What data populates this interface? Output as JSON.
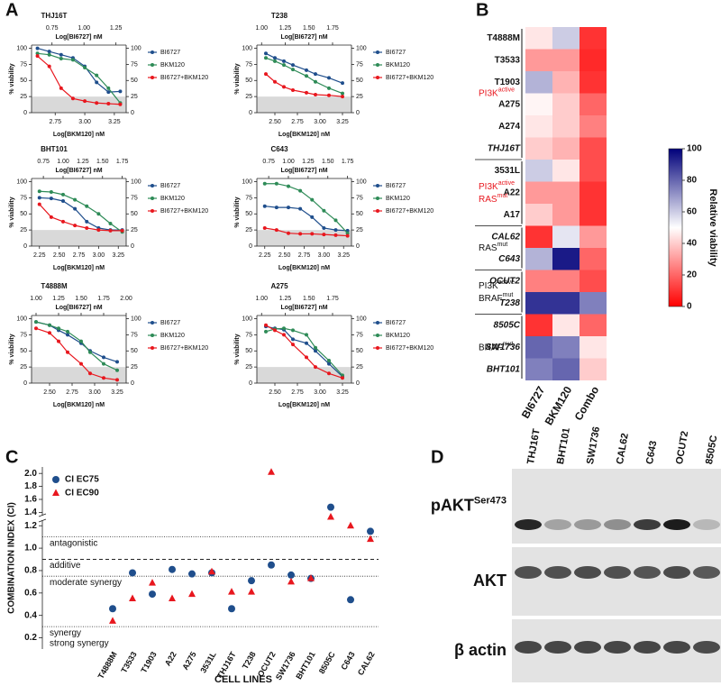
{
  "panels": [
    "A",
    "B",
    "C",
    "D"
  ],
  "chart_data": [
    {
      "type": "line",
      "title": "THJ16T",
      "x_label": "Log[BKM120] nM",
      "x2_label": "Log[BI6727] nM",
      "y_label": "% viability",
      "x": [
        2.6,
        2.7,
        2.8,
        2.9,
        3.0,
        3.1,
        3.2,
        3.3
      ],
      "xlim": [
        2.55,
        3.35
      ],
      "xticks": [
        2.75,
        {
          "value": 3,
          "label": "3.00"
        },
        3.25
      ],
      "x2lim": [
        0.59,
        1.33
      ],
      "x2ticks": [
        0.75,
        {
          "value": 1,
          "label": "1.00"
        },
        1.25
      ],
      "ylim": [
        0,
        105
      ],
      "yticks": [
        0,
        25,
        50,
        75,
        100
      ],
      "y2lim": [
        0,
        105
      ],
      "y2ticks": [
        0,
        25,
        50,
        75,
        100
      ],
      "shaded_band": [
        0,
        25
      ],
      "series": [
        {
          "name": "BI6727",
          "color": "#1f4e8c",
          "values": [
            100,
            95,
            90,
            85,
            72,
            47,
            32,
            33
          ]
        },
        {
          "name": "BKM120",
          "color": "#2e8b57",
          "values": [
            92,
            90,
            84,
            82,
            70,
            58,
            38,
            15
          ]
        },
        {
          "name": "BI6727+BKM120",
          "color": "#e8171e",
          "values": [
            88,
            72,
            38,
            22,
            18,
            15,
            14,
            13
          ]
        }
      ]
    },
    {
      "type": "line",
      "title": "T238",
      "x_label": "Log[BKM120] nM",
      "x2_label": "Log[BI6727] nM",
      "y_label": "% viability",
      "x": [
        2.4,
        2.5,
        2.6,
        2.7,
        2.85,
        2.95,
        3.1,
        3.25
      ],
      "xlim": [
        2.3,
        3.35
      ],
      "xticks": [
        {
          "value": 2.5,
          "label": "2.50"
        },
        2.75,
        {
          "value": 3,
          "label": "3.00"
        },
        3.25
      ],
      "x2lim": [
        0.95,
        1.95
      ],
      "x2ticks": [
        {
          "value": 1,
          "label": "1.00"
        },
        1.25,
        {
          "value": 1.5,
          "label": "1.50"
        },
        1.75
      ],
      "ylim": [
        0,
        105
      ],
      "yticks": [
        0,
        25,
        50,
        75,
        100
      ],
      "y2lim": [
        0,
        105
      ],
      "y2ticks": [
        0,
        25,
        50,
        75,
        100
      ],
      "shaded_band": [
        0,
        25
      ],
      "series": [
        {
          "name": "BI6727",
          "color": "#1f4e8c",
          "values": [
            92,
            85,
            80,
            74,
            66,
            60,
            54,
            46
          ]
        },
        {
          "name": "BKM120",
          "color": "#2e8b57",
          "values": [
            85,
            80,
            74,
            67,
            57,
            48,
            38,
            30
          ]
        },
        {
          "name": "BI6727+BKM120",
          "color": "#e8171e",
          "values": [
            60,
            48,
            40,
            35,
            31,
            28,
            27,
            25
          ]
        }
      ]
    },
    {
      "type": "line",
      "title": "BHT101",
      "x_label": "Log[BKM120] nM",
      "x2_label": "Log[BI6727] nM",
      "y_label": "% viability",
      "x": [
        2.25,
        2.4,
        2.55,
        2.7,
        2.85,
        3.0,
        3.15,
        3.3
      ],
      "xlim": [
        2.15,
        3.35
      ],
      "xticks": [
        2.25,
        {
          "value": 2.5,
          "label": "2.50"
        },
        2.75,
        {
          "value": 3,
          "label": "3.00"
        },
        3.25
      ],
      "x2lim": [
        0.6,
        1.8
      ],
      "x2ticks": [
        0.75,
        {
          "value": 1,
          "label": "1.00"
        },
        1.25,
        {
          "value": 1.5,
          "label": "1.50"
        },
        1.75
      ],
      "ylim": [
        0,
        105
      ],
      "yticks": [
        0,
        25,
        50,
        75,
        100
      ],
      "y2lim": [
        0,
        105
      ],
      "y2ticks": [
        0,
        25,
        50,
        75,
        100
      ],
      "shaded_band": [
        0,
        25
      ],
      "series": [
        {
          "name": "BI6727",
          "color": "#1f4e8c",
          "values": [
            75,
            74,
            70,
            58,
            38,
            28,
            25,
            25
          ]
        },
        {
          "name": "BKM120",
          "color": "#2e8b57",
          "values": [
            85,
            84,
            80,
            72,
            62,
            50,
            35,
            22
          ]
        },
        {
          "name": "BI6727+BKM120",
          "color": "#e8171e",
          "values": [
            65,
            45,
            38,
            32,
            28,
            25,
            24,
            24
          ]
        }
      ]
    },
    {
      "type": "line",
      "title": "C643",
      "x_label": "Log[BKM120] nM",
      "x2_label": "Log[BI6727] nM",
      "y_label": "% viability",
      "x": [
        2.25,
        2.4,
        2.55,
        2.7,
        2.85,
        3.0,
        3.15,
        3.3
      ],
      "xlim": [
        2.15,
        3.35
      ],
      "xticks": [
        2.25,
        {
          "value": 2.5,
          "label": "2.50"
        },
        2.75,
        {
          "value": 3,
          "label": "3.00"
        },
        3.25
      ],
      "x2lim": [
        0.6,
        1.8
      ],
      "x2ticks": [
        0.75,
        {
          "value": 1,
          "label": "1.00"
        },
        1.25,
        {
          "value": 1.5,
          "label": "1.50"
        },
        1.75
      ],
      "ylim": [
        0,
        105
      ],
      "yticks": [
        0,
        25,
        50,
        75,
        100
      ],
      "y2lim": [
        0,
        105
      ],
      "y2ticks": [
        0,
        25,
        50,
        75,
        100
      ],
      "shaded_band": [
        0,
        25
      ],
      "series": [
        {
          "name": "BI6727",
          "color": "#1f4e8c",
          "values": [
            62,
            60,
            60,
            58,
            45,
            28,
            25,
            24
          ]
        },
        {
          "name": "BKM120",
          "color": "#2e8b57",
          "values": [
            97,
            97,
            93,
            86,
            72,
            55,
            40,
            20
          ]
        },
        {
          "name": "BI6727+BKM120",
          "color": "#e8171e",
          "values": [
            28,
            25,
            20,
            19,
            19,
            18,
            17,
            16
          ]
        }
      ]
    },
    {
      "type": "line",
      "title": "T4888M",
      "x_label": "Log[BKM120] nM",
      "x2_label": "Log[BI6727] nM",
      "y_label": "% viability",
      "x": [
        2.35,
        2.5,
        2.6,
        2.7,
        2.85,
        2.95,
        3.1,
        3.25
      ],
      "xlim": [
        2.3,
        3.35
      ],
      "xticks": [
        {
          "value": 2.5,
          "label": "2.50"
        },
        2.75,
        {
          "value": 3,
          "label": "3.00"
        },
        3.25
      ],
      "x2lim": [
        0.95,
        2.0
      ],
      "x2ticks": [
        {
          "value": 1,
          "label": "1.00"
        },
        1.25,
        {
          "value": 1.5,
          "label": "1.50"
        },
        1.75,
        {
          "value": 2,
          "label": "2.00"
        }
      ],
      "ylim": [
        0,
        105
      ],
      "yticks": [
        0,
        25,
        50,
        75,
        100
      ],
      "y2lim": [
        0,
        105
      ],
      "y2ticks": [
        0,
        25,
        50,
        75,
        100
      ],
      "shaded_band": [
        0,
        25
      ],
      "series": [
        {
          "name": "BI6727",
          "color": "#1f4e8c",
          "values": [
            95,
            90,
            82,
            75,
            62,
            50,
            40,
            33
          ]
        },
        {
          "name": "BKM120",
          "color": "#2e8b57",
          "values": [
            95,
            90,
            85,
            80,
            65,
            48,
            30,
            20
          ]
        },
        {
          "name": "BI6727+BKM120",
          "color": "#e8171e",
          "values": [
            85,
            78,
            65,
            48,
            30,
            15,
            8,
            5
          ]
        }
      ]
    },
    {
      "type": "line",
      "title": "A275",
      "x_label": "Log[BKM120] nM",
      "x2_label": "Log[BI6727] nM",
      "y_label": "% viability",
      "x": [
        2.4,
        2.5,
        2.6,
        2.7,
        2.85,
        2.95,
        3.1,
        3.25
      ],
      "xlim": [
        2.3,
        3.35
      ],
      "xticks": [
        {
          "value": 2.5,
          "label": "2.50"
        },
        2.75,
        {
          "value": 3,
          "label": "3.00"
        },
        3.25
      ],
      "x2lim": [
        0.95,
        1.95
      ],
      "x2ticks": [
        {
          "value": 1,
          "label": "1.00"
        },
        1.25,
        {
          "value": 1.5,
          "label": "1.50"
        },
        1.75
      ],
      "ylim": [
        0,
        105
      ],
      "yticks": [
        0,
        25,
        50,
        75,
        100
      ],
      "y2lim": [
        0,
        105
      ],
      "y2ticks": [
        0,
        25,
        50,
        75,
        100
      ],
      "shaded_band": [
        0,
        25
      ],
      "series": [
        {
          "name": "BI6727",
          "color": "#1f4e8c",
          "values": [
            88,
            85,
            83,
            68,
            62,
            50,
            30,
            10
          ]
        },
        {
          "name": "BKM120",
          "color": "#2e8b57",
          "values": [
            80,
            84,
            85,
            82,
            75,
            55,
            35,
            12
          ]
        },
        {
          "name": "BI6727+BKM120",
          "color": "#e8171e",
          "values": [
            90,
            82,
            75,
            60,
            40,
            25,
            15,
            8
          ]
        }
      ]
    },
    {
      "type": "heatmap",
      "rows": [
        "T4888M",
        "T3533",
        "T1903",
        "A275",
        "A274",
        "THJ16T",
        "3531L",
        "A22",
        "A17",
        "CAL62",
        "C643",
        "OCUT2",
        "T238",
        "8505C",
        "SW1736",
        "BHT101"
      ],
      "columns": [
        "BI6727",
        "BKM120",
        "Combo"
      ],
      "values": [
        [
          45,
          60,
          10
        ],
        [
          30,
          30,
          8
        ],
        [
          65,
          35,
          10
        ],
        [
          48,
          40,
          20
        ],
        [
          45,
          40,
          25
        ],
        [
          40,
          35,
          15
        ],
        [
          60,
          45,
          15
        ],
        [
          30,
          30,
          10
        ],
        [
          40,
          30,
          10
        ],
        [
          10,
          55,
          30
        ],
        [
          65,
          95,
          20
        ],
        [
          25,
          25,
          15
        ],
        [
          90,
          90,
          75
        ],
        [
          10,
          45,
          20
        ],
        [
          80,
          75,
          45
        ],
        [
          75,
          80,
          40
        ]
      ],
      "italic_rows": [
        5,
        9,
        10,
        11,
        12,
        13,
        14,
        15
      ],
      "groups": [
        {
          "rows": [
            0,
            5
          ],
          "color": "#e8171e",
          "lines": [
            {
              "text": "PI3K",
              "sup": "active"
            }
          ]
        },
        {
          "rows": [
            6,
            8
          ],
          "color": "#e8171e",
          "lines": [
            {
              "text": "PI3K",
              "sup": "active"
            },
            {
              "text": "RAS",
              "sup": "mut"
            }
          ]
        },
        {
          "rows": [
            9,
            10
          ],
          "color": "#111111",
          "lines": [
            {
              "text": "RAS",
              "sup": "mut"
            }
          ]
        },
        {
          "rows": [
            11,
            12
          ],
          "color": "#111111",
          "lines": [
            {
              "text": "PI3K",
              "sup": "active"
            },
            {
              "text": "BRAF",
              "sup": "mut"
            }
          ]
        },
        {
          "rows": [
            13,
            15
          ],
          "color": "#111111",
          "lines": [
            {
              "text": "BRAF",
              "sup": "mut"
            }
          ]
        }
      ],
      "colorbar": {
        "label": "Relative viability",
        "lim": [
          0,
          100
        ],
        "ticks": [
          0,
          20,
          40,
          60,
          80,
          100
        ],
        "colors": [
          "#ff0000",
          "#ffffff",
          "#00007a"
        ]
      }
    },
    {
      "type": "scatter",
      "y_label": "COMBINATION INDEX (CI)",
      "x_label": "CELL LINES",
      "categories": [
        "T4888M",
        "T3533",
        "T1903",
        "A22",
        "A275",
        "3531L",
        "THJ16T",
        "T238",
        "OCUT2",
        "SW1736",
        "BHT101",
        "8505C",
        "C643",
        "CAL62"
      ],
      "series": [
        {
          "name": "CI EC75",
          "color": "#1f4e8c",
          "marker": "circle",
          "values": [
            0.46,
            0.78,
            0.59,
            0.81,
            0.77,
            0.78,
            0.46,
            0.71,
            0.85,
            0.76,
            0.73,
            1.48,
            0.54,
            1.15
          ]
        },
        {
          "name": "CI EC90",
          "color": "#e8171e",
          "marker": "triangle",
          "values": [
            0.35,
            0.55,
            0.69,
            0.55,
            0.59,
            0.79,
            0.61,
            0.61,
            2.02,
            0.7,
            0.73,
            1.33,
            1.2,
            1.08
          ]
        }
      ],
      "ylim": [
        0.1,
        2.1
      ],
      "ybreak": [
        1.25,
        1.35
      ],
      "yticks": [
        0.2,
        0.4,
        0.6,
        0.8,
        {
          "value": 1,
          "label": "1.0"
        },
        1.2,
        1.4,
        1.6,
        1.8,
        {
          "value": 2,
          "label": "2.0"
        }
      ],
      "reference_lines": [
        {
          "value": 1.1,
          "label": "antagonistic",
          "style": "dotted"
        },
        {
          "value": 0.9,
          "label": "additive",
          "style": "dashed"
        },
        {
          "value": 0.75,
          "label": "moderate synergy",
          "style": "dotted"
        },
        {
          "value": 0.3,
          "label": "synergy",
          "style": "dotted"
        }
      ],
      "region_label": "strong synergy",
      "legend": "upper left"
    }
  ],
  "blot": {
    "lanes": [
      "THJ16T",
      "BHT101",
      "SW1736",
      "CAL62",
      "C643",
      "OCUT2",
      "8505C"
    ],
    "rows": [
      {
        "text": "pAKT",
        "sup": "Ser473"
      },
      {
        "text": "AKT"
      },
      {
        "text": "β actin"
      }
    ]
  }
}
